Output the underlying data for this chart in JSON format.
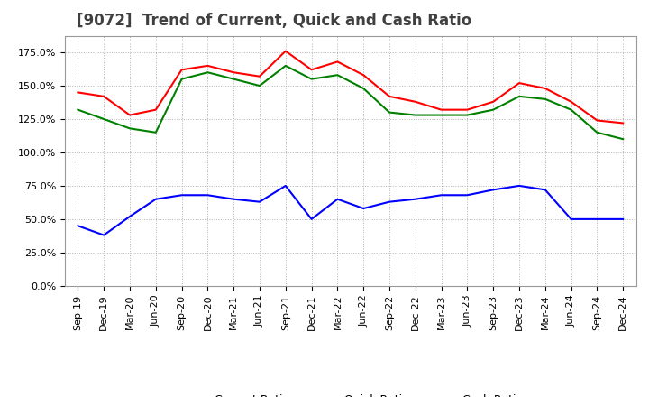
{
  "title": "[9072]  Trend of Current, Quick and Cash Ratio",
  "x_labels": [
    "Sep-19",
    "Dec-19",
    "Mar-20",
    "Jun-20",
    "Sep-20",
    "Dec-20",
    "Mar-21",
    "Jun-21",
    "Sep-21",
    "Dec-21",
    "Mar-22",
    "Jun-22",
    "Sep-22",
    "Dec-22",
    "Mar-23",
    "Jun-23",
    "Sep-23",
    "Dec-23",
    "Mar-24",
    "Jun-24",
    "Sep-24",
    "Dec-24"
  ],
  "current_ratio": [
    1.45,
    1.42,
    1.28,
    1.32,
    1.62,
    1.65,
    1.6,
    1.57,
    1.76,
    1.62,
    1.68,
    1.58,
    1.42,
    1.38,
    1.32,
    1.32,
    1.38,
    1.52,
    1.48,
    1.38,
    1.24,
    1.22
  ],
  "quick_ratio": [
    1.32,
    1.25,
    1.18,
    1.15,
    1.55,
    1.6,
    1.55,
    1.5,
    1.65,
    1.55,
    1.58,
    1.48,
    1.3,
    1.28,
    1.28,
    1.28,
    1.32,
    1.42,
    1.4,
    1.32,
    1.15,
    1.1
  ],
  "cash_ratio": [
    0.45,
    0.38,
    0.52,
    0.65,
    0.68,
    0.68,
    0.65,
    0.63,
    0.75,
    0.5,
    0.65,
    0.58,
    0.63,
    0.65,
    0.68,
    0.68,
    0.72,
    0.75,
    0.72,
    0.5,
    0.5,
    0.5
  ],
  "current_color": "#ff0000",
  "quick_color": "#008000",
  "cash_color": "#0000ff",
  "ylim_min": 0.0,
  "ylim_max": 1.875,
  "yticks": [
    0.0,
    0.25,
    0.5,
    0.75,
    1.0,
    1.25,
    1.5,
    1.75
  ],
  "ytick_labels": [
    "0.0%",
    "25.0%",
    "50.0%",
    "75.0%",
    "100.0%",
    "125.0%",
    "150.0%",
    "175.0%"
  ],
  "background_color": "#ffffff",
  "grid_color": "#b0b0b0",
  "title_color": "#404040",
  "title_fontsize": 12,
  "tick_fontsize": 8,
  "legend_fontsize": 9
}
